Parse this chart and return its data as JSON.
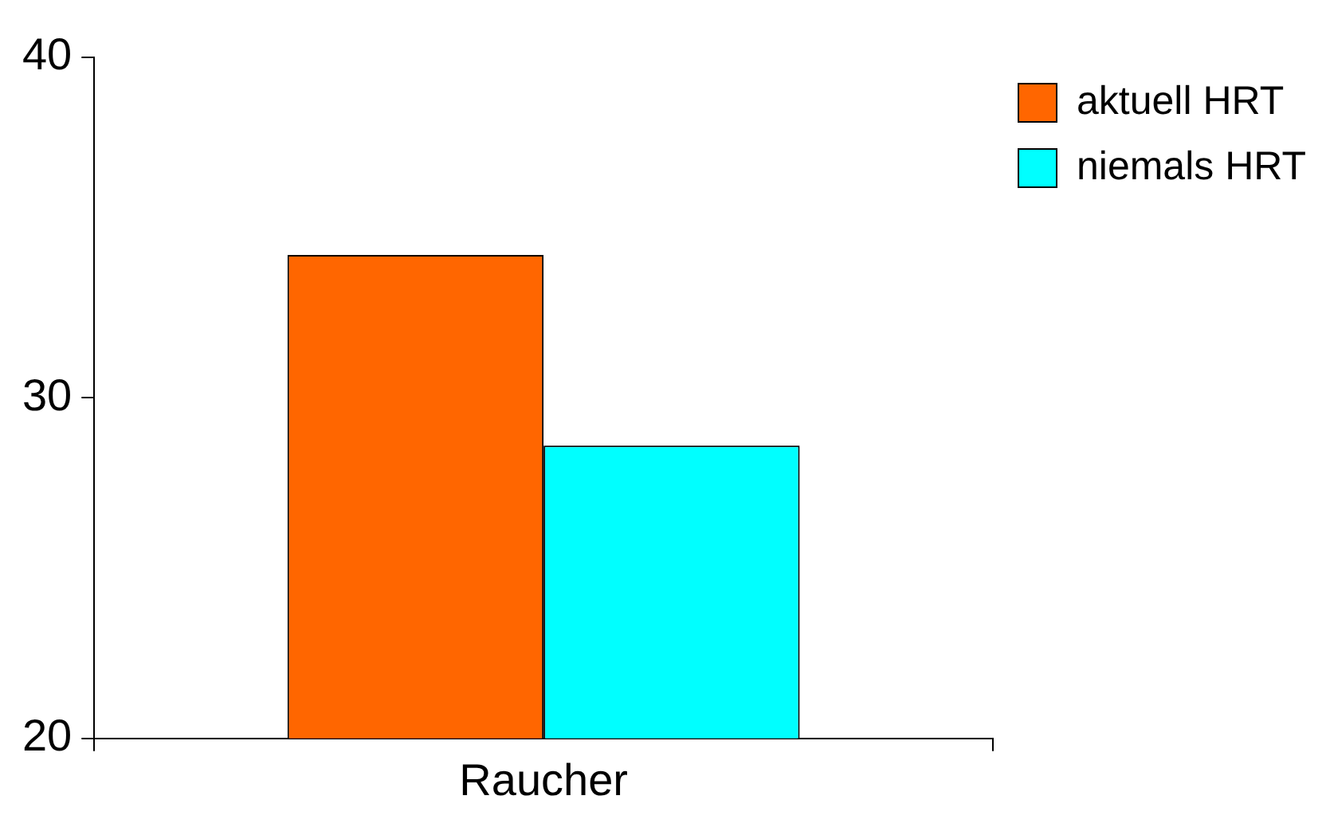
{
  "chart_data": {
    "type": "bar",
    "categories": [
      "Raucher"
    ],
    "series": [
      {
        "name": "aktuell HRT",
        "color": "#ff6600",
        "values": [
          34.2
        ]
      },
      {
        "name": "niemals HRT",
        "color": "#00ffff",
        "values": [
          28.6
        ]
      }
    ],
    "ylim": [
      20,
      40
    ],
    "yticks": [
      20,
      30,
      40
    ],
    "grid": false,
    "legend": "top right"
  }
}
